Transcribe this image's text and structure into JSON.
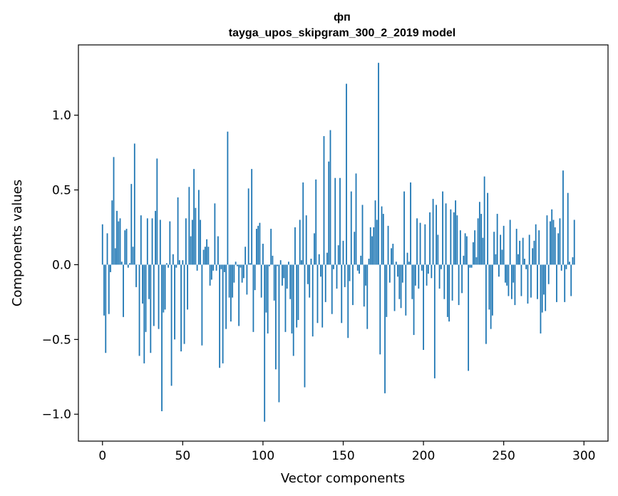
{
  "chart_data": {
    "type": "bar",
    "title_line1": "фп",
    "title_line2": "tayga_upos_skipgram_300_2_2019 model",
    "xlabel": "Vector components",
    "ylabel": "Components values",
    "xlim": [
      -15,
      315
    ],
    "ylim": [
      -1.18,
      1.47
    ],
    "xticks": [
      0,
      50,
      100,
      150,
      200,
      250,
      300
    ],
    "xtick_labels": [
      "0",
      "50",
      "100",
      "150",
      "200",
      "250",
      "300"
    ],
    "yticks": [
      -1.0,
      -0.5,
      0.0,
      0.5,
      1.0
    ],
    "ytick_labels": [
      "−1.0",
      "−0.5",
      "0.0",
      "0.5",
      "1.0"
    ],
    "bar_color": "#1f77b4",
    "values": [
      0.27,
      -0.34,
      -0.59,
      0.21,
      -0.33,
      -0.05,
      0.43,
      0.72,
      0.11,
      0.36,
      0.29,
      0.31,
      0.02,
      -0.35,
      0.23,
      0.24,
      -0.02,
      0.01,
      0.54,
      0.12,
      0.81,
      -0.15,
      0.0,
      -0.61,
      0.33,
      -0.26,
      -0.66,
      -0.45,
      0.31,
      -0.23,
      -0.59,
      0.31,
      -0.41,
      0.36,
      0.71,
      -0.43,
      0.3,
      -0.98,
      -0.32,
      -0.3,
      0.01,
      -0.02,
      0.29,
      -0.81,
      0.07,
      -0.5,
      -0.02,
      0.45,
      0.03,
      -0.58,
      0.03,
      -0.53,
      0.31,
      -0.3,
      0.52,
      0.19,
      0.3,
      0.64,
      0.38,
      -0.04,
      0.5,
      0.3,
      -0.54,
      0.1,
      0.12,
      0.17,
      0.12,
      -0.14,
      -0.1,
      -0.04,
      0.41,
      -0.04,
      0.19,
      -0.69,
      -0.03,
      -0.66,
      -0.05,
      -0.43,
      0.89,
      -0.22,
      -0.38,
      -0.22,
      -0.12,
      0.02,
      -0.01,
      -0.41,
      -0.02,
      -0.12,
      -0.09,
      0.12,
      -0.2,
      0.51,
      0.01,
      0.64,
      -0.45,
      -0.17,
      0.24,
      0.26,
      0.28,
      -0.22,
      0.14,
      -1.05,
      -0.32,
      -0.46,
      -0.01,
      0.24,
      0.06,
      -0.24,
      -0.7,
      -0.01,
      -0.92,
      0.03,
      -0.14,
      -0.09,
      -0.45,
      -0.16,
      0.02,
      -0.23,
      -0.46,
      -0.61,
      0.25,
      -0.42,
      -0.37,
      0.3,
      0.03,
      0.55,
      -0.82,
      0.33,
      -0.13,
      -0.22,
      0.04,
      -0.48,
      0.21,
      0.57,
      -0.39,
      0.07,
      -0.08,
      -0.42,
      0.86,
      -0.25,
      0.08,
      0.69,
      0.9,
      -0.33,
      -0.03,
      0.58,
      -0.16,
      0.13,
      0.58,
      -0.39,
      0.16,
      -0.15,
      1.21,
      -0.49,
      -0.11,
      0.49,
      -0.27,
      0.22,
      0.61,
      -0.04,
      -0.06,
      0.06,
      0.4,
      -0.28,
      -0.14,
      -0.43,
      0.04,
      0.25,
      0.19,
      0.25,
      0.43,
      0.3,
      1.35,
      -0.6,
      0.39,
      0.34,
      -0.86,
      -0.35,
      0.26,
      -0.12,
      0.11,
      0.14,
      -0.31,
      0.02,
      -0.08,
      -0.23,
      -0.29,
      -0.12,
      0.49,
      -0.34,
      0.08,
      0.02,
      0.55,
      -0.23,
      -0.47,
      -0.14,
      0.31,
      -0.16,
      0.28,
      -0.04,
      -0.57,
      0.27,
      -0.14,
      -0.06,
      0.35,
      -0.09,
      0.44,
      -0.76,
      0.4,
      0.2,
      -0.16,
      -0.03,
      0.49,
      -0.23,
      0.41,
      -0.35,
      -0.38,
      0.37,
      -0.24,
      0.35,
      0.43,
      0.33,
      -0.27,
      0.23,
      -0.19,
      0.06,
      0.21,
      0.19,
      -0.71,
      -0.02,
      -0.02,
      0.15,
      0.23,
      0.05,
      0.31,
      0.42,
      0.34,
      0.18,
      0.59,
      -0.53,
      0.48,
      -0.3,
      -0.43,
      -0.34,
      0.22,
      0.07,
      0.34,
      -0.08,
      0.2,
      0.1,
      0.26,
      -0.12,
      -0.14,
      -0.21,
      0.3,
      -0.23,
      -0.12,
      -0.27,
      0.24,
      0.07,
      0.16,
      -0.21,
      0.18,
      0.04,
      -0.03,
      -0.26,
      0.2,
      -0.22,
      0.11,
      0.16,
      0.27,
      -0.23,
      0.23,
      -0.46,
      -0.32,
      -0.2,
      -0.31,
      0.33,
      -0.13,
      0.29,
      0.37,
      0.3,
      0.25,
      -0.25,
      0.21,
      0.31,
      -0.04,
      0.63,
      -0.25,
      -0.03,
      0.48,
      0.02,
      -0.21,
      0.05,
      0.3
    ]
  }
}
